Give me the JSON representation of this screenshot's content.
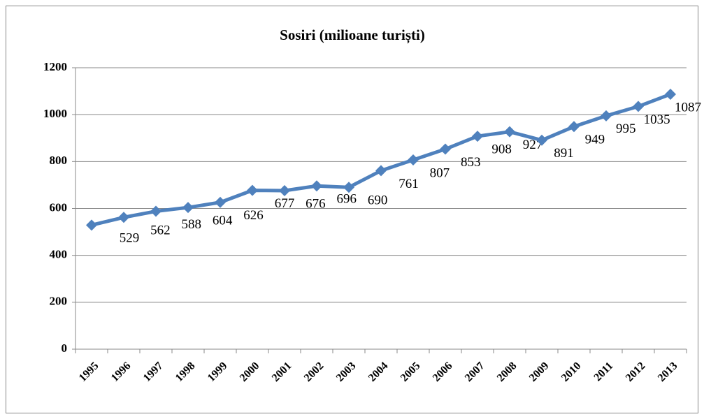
{
  "chart_data": {
    "type": "line",
    "title": "Sosiri (milioane turiști)",
    "categories": [
      "1995",
      "1996",
      "1997",
      "1998",
      "1999",
      "2000",
      "2001",
      "2002",
      "2003",
      "2004",
      "2005",
      "2006",
      "2007",
      "2008",
      "2009",
      "2010",
      "2011",
      "2012",
      "2013"
    ],
    "series": [
      {
        "name": "Sosiri",
        "color": "#4f81bd",
        "values": [
          529,
          562,
          588,
          604,
          626,
          677,
          676,
          696,
          690,
          761,
          807,
          853,
          908,
          927,
          891,
          949,
          995,
          1035,
          1087
        ]
      }
    ],
    "ylim": [
      0,
      1200
    ],
    "yticks": [
      0,
      200,
      400,
      600,
      800,
      1000,
      1200
    ],
    "grid": true
  }
}
